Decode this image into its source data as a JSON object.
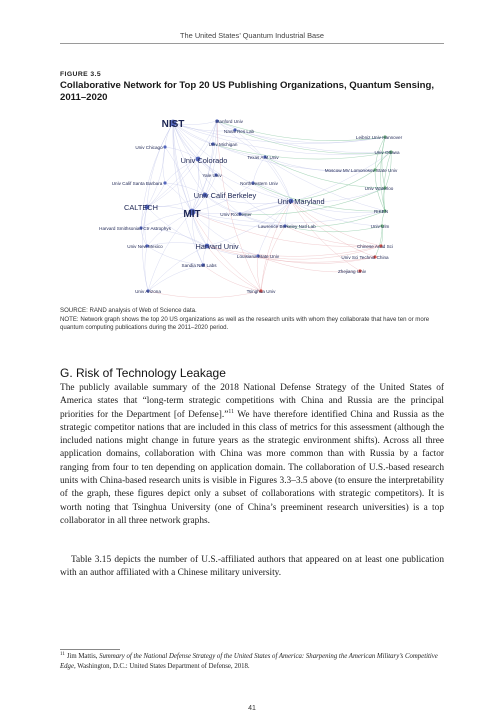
{
  "header": {
    "running_title": "The United States’ Quantum Industrial Base"
  },
  "figure": {
    "label": "FIGURE 3.5",
    "title": "Collaborative Network for Top 20 US Publishing Organizations, Quantum Sensing, 2011–2020",
    "source": "SOURCE: RAND analysis of Web of Science data.",
    "note": "NOTE: Network graph shows the top 20 US organizations as well as the research units with whom they collaborate that have ten or more quantum computing publications during the 2011–2020 period.",
    "colors": {
      "us": "#3a4fb0",
      "china": "#d9392c",
      "europe": "#5aa26a",
      "edge_us": "#b8bee6",
      "edge_eu": "#8fc9a6"
    },
    "nodes": [
      {
        "id": "nist",
        "label": "NIST",
        "group": "us",
        "emphasis": "large"
      },
      {
        "id": "stanford",
        "label": "Stanford Univ",
        "group": "us"
      },
      {
        "id": "navalres",
        "label": "Naval Res Lab",
        "group": "us"
      },
      {
        "id": "leibniz",
        "label": "Leibniz Univ Hannover",
        "group": "europe"
      },
      {
        "id": "ottawa",
        "label": "Univ Ottawa",
        "group": "europe"
      },
      {
        "id": "chicago",
        "label": "Univ Chicago",
        "group": "us"
      },
      {
        "id": "michigan",
        "label": "Univ Michigan",
        "group": "us"
      },
      {
        "id": "texasam",
        "label": "Texas A M Univ",
        "group": "us"
      },
      {
        "id": "moscow",
        "label": "Moscow MV Lomonosov State Univ",
        "group": "europe"
      },
      {
        "id": "colorado",
        "label": "Univ Colorado",
        "group": "us",
        "emphasis": "medium"
      },
      {
        "id": "yale",
        "label": "Yale Univ",
        "group": "us"
      },
      {
        "id": "ucsb",
        "label": "Univ Calif Santa Barbara",
        "group": "us"
      },
      {
        "id": "northwestern",
        "label": "Northwestern Univ",
        "group": "us"
      },
      {
        "id": "waterloo",
        "label": "Univ Waterloo",
        "group": "europe"
      },
      {
        "id": "berkeley",
        "label": "Univ Calif Berkeley",
        "group": "us",
        "emphasis": "medium"
      },
      {
        "id": "maryland",
        "label": "Univ Maryland",
        "group": "us",
        "emphasis": "medium"
      },
      {
        "id": "caltech",
        "label": "CALTECH",
        "group": "us",
        "emphasis": "medium"
      },
      {
        "id": "mit",
        "label": "MIT",
        "group": "us",
        "emphasis": "large"
      },
      {
        "id": "rochester",
        "label": "Univ Rochester",
        "group": "us"
      },
      {
        "id": "riken",
        "label": "RIKEN",
        "group": "europe"
      },
      {
        "id": "harvardsmith",
        "label": "Harvard Smithsonian Ctr Astrophys",
        "group": "us"
      },
      {
        "id": "lbnl",
        "label": "Lawrence Berkeley Natl Lab",
        "group": "us"
      },
      {
        "id": "ulm",
        "label": "Univ Ulm",
        "group": "europe"
      },
      {
        "id": "newmexico",
        "label": "Univ New Mexico",
        "group": "us"
      },
      {
        "id": "harvard",
        "label": "Harvard Univ",
        "group": "us",
        "emphasis": "medium"
      },
      {
        "id": "cas",
        "label": "Chinese Acad Sci",
        "group": "china"
      },
      {
        "id": "lsu",
        "label": "Louisiana State Univ",
        "group": "us"
      },
      {
        "id": "ustc",
        "label": "Univ Sci Technol China",
        "group": "china"
      },
      {
        "id": "sandia",
        "label": "Sandia Natl Labs",
        "group": "us"
      },
      {
        "id": "zhejiang",
        "label": "Zhejiang Univ",
        "group": "china"
      },
      {
        "id": "arizona",
        "label": "Univ Arizona",
        "group": "us"
      },
      {
        "id": "tsinghua",
        "label": "Tsinghua Univ",
        "group": "china"
      }
    ]
  },
  "section": {
    "heading": "G. Risk of Technology Leakage",
    "p1_before": "The publicly available summary of the 2018 National Defense Strategy of the United States of America states that “long-term strategic competitions with China and Russia are the principal priorities for the Department [of Defense].”",
    "p1_fn": "11",
    "p1_after": " We have therefore identified China and Russia as the strategic competitor nations that are included in this class of metrics for this assessment (although the included nations might change in future years as the strategic environment shifts). Across all three application domains, collaboration with China was more common than with Russia by a factor ranging from four to ten depending on application domain. The collaboration of U.S.-based research units with China-based research units is visible in Figures 3.3–3.5 above (to ensure the interpretability of the graph, these figures depict only a subset of collaborations with strategic competitors). It is worth noting that Tsinghua University (one of China’s preeminent research universities) is a top collaborator in all three network graphs.",
    "p2": "Table 3.15 depicts the number of U.S.-affiliated authors that appeared on at least one publication with an author affiliated with a Chinese military university."
  },
  "footnote": {
    "number": "11",
    "before": "Jim Mattis, ",
    "title": "Summary of the National Defense Strategy of the United States of America: Sharpening the American Military’s Competitive Edge",
    "after": ", Washington, D.C.: United States Department of Defense, 2018."
  },
  "page_number": "41"
}
